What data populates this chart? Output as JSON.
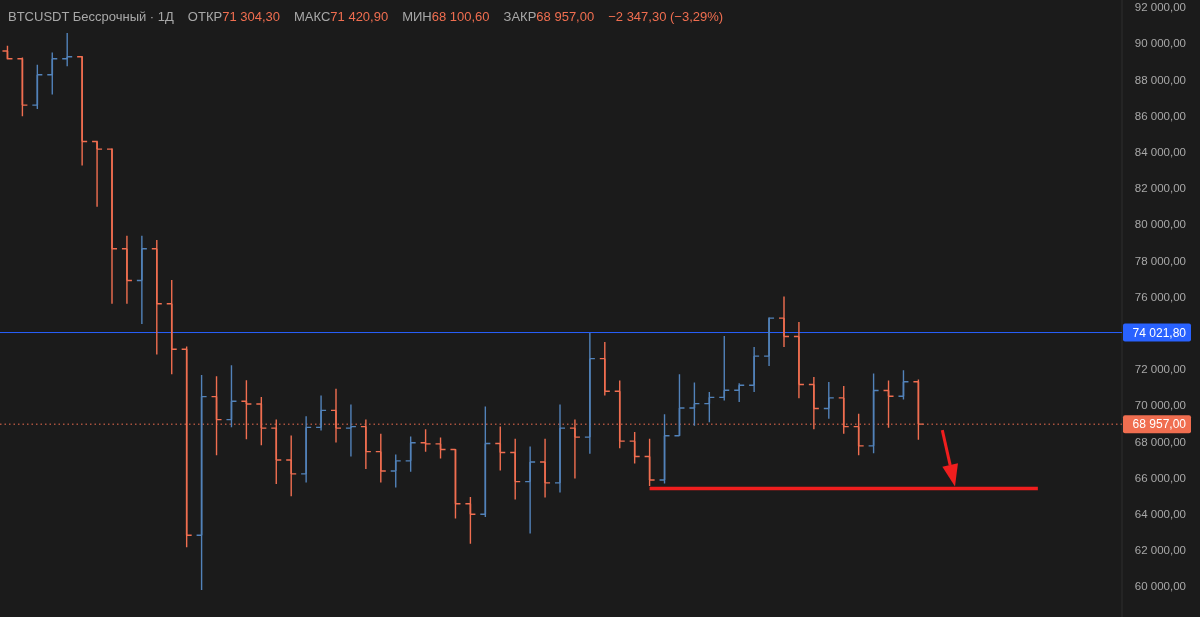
{
  "chart_data": {
    "type": "candlestick",
    "title": "BTCUSDT Бессрочный · 1Д",
    "annotations": [
      "ОТКР71 304,30",
      "МАКС71 420,90",
      "МИН68 100,60",
      "ЗАКР68 957,00",
      "−2 347,30 (−3,29%)"
    ],
    "categories": [
      null,
      null,
      null,
      null,
      null,
      null,
      null,
      null,
      null,
      null,
      null,
      null,
      null,
      null,
      null,
      null,
      null,
      null,
      null,
      null,
      null,
      null,
      null,
      null,
      null,
      null,
      null,
      null,
      null,
      null,
      null,
      null,
      null,
      null,
      null,
      null,
      null,
      null,
      null,
      null,
      null,
      null,
      null,
      null,
      null,
      null,
      null,
      null,
      null,
      null,
      null,
      null,
      null,
      null,
      null,
      null,
      null,
      null,
      null,
      null,
      null,
      null,
      null,
      null,
      null,
      null,
      null,
      null,
      null,
      null,
      null,
      null,
      null,
      null,
      null
    ],
    "series": [
      {
        "ohlc": [
          [
            89580,
            89870,
            89110,
            89150
          ],
          [
            89150,
            89220,
            85980,
            86590
          ],
          [
            86590,
            88820,
            86370,
            88270
          ],
          [
            88270,
            89500,
            87180,
            89150
          ],
          [
            89150,
            90570,
            88740,
            89260
          ],
          [
            89260,
            89300,
            83250,
            84580
          ],
          [
            84580,
            84620,
            80970,
            84160
          ],
          [
            84160,
            84200,
            75610,
            78650
          ],
          [
            78650,
            79370,
            75610,
            76900
          ],
          [
            76900,
            79370,
            74500,
            78650
          ],
          [
            78650,
            79130,
            72810,
            75610
          ],
          [
            75610,
            76920,
            71720,
            73100
          ],
          [
            73100,
            73250,
            62160,
            62820
          ],
          [
            62820,
            71670,
            59790,
            70480
          ],
          [
            70480,
            71610,
            67240,
            69210
          ],
          [
            69210,
            72220,
            68790,
            70220
          ],
          [
            70220,
            71390,
            68130,
            70070
          ],
          [
            70070,
            70460,
            67790,
            68740
          ],
          [
            68740,
            69210,
            65650,
            66980
          ],
          [
            66980,
            68330,
            64980,
            66210
          ],
          [
            66210,
            69390,
            65740,
            68780
          ],
          [
            68780,
            70540,
            68610,
            69720
          ],
          [
            69720,
            70910,
            67940,
            68740
          ],
          [
            68740,
            70040,
            67170,
            68820
          ],
          [
            68820,
            69210,
            66480,
            67440
          ],
          [
            67440,
            68430,
            65740,
            66370
          ],
          [
            66370,
            67280,
            65460,
            66930
          ],
          [
            66930,
            68280,
            66330,
            67930
          ],
          [
            67930,
            68670,
            67430,
            67870
          ],
          [
            67870,
            68220,
            67060,
            67560
          ],
          [
            67560,
            67590,
            63740,
            64560
          ],
          [
            64560,
            64930,
            62350,
            63980
          ],
          [
            63980,
            69940,
            63820,
            67890
          ],
          [
            67890,
            68830,
            66390,
            67390
          ],
          [
            67390,
            68150,
            64790,
            65780
          ],
          [
            65780,
            67720,
            62910,
            66870
          ],
          [
            66870,
            68150,
            64910,
            65710
          ],
          [
            65710,
            70040,
            65180,
            68740
          ],
          [
            68740,
            69210,
            65960,
            68240
          ],
          [
            68240,
            73990,
            67320,
            72580
          ],
          [
            72580,
            73500,
            70540,
            70780
          ],
          [
            70780,
            71370,
            67630,
            68020
          ],
          [
            68020,
            68520,
            66790,
            67170
          ],
          [
            67170,
            68150,
            65540,
            65870
          ],
          [
            65870,
            69500,
            65680,
            68320
          ],
          [
            68320,
            71720,
            68300,
            69850
          ],
          [
            69850,
            71260,
            68870,
            70090
          ],
          [
            70090,
            70740,
            69070,
            70440
          ],
          [
            70440,
            73830,
            70260,
            70830
          ],
          [
            70830,
            71220,
            70180,
            71110
          ],
          [
            71110,
            73220,
            70740,
            72720
          ],
          [
            72720,
            74870,
            72170,
            74820
          ],
          [
            74820,
            76020,
            73220,
            73800
          ],
          [
            73800,
            74610,
            70390,
            71150
          ],
          [
            71150,
            71570,
            68680,
            69820
          ],
          [
            69820,
            71290,
            69260,
            70410
          ],
          [
            70410,
            71060,
            68430,
            68820
          ],
          [
            68820,
            69540,
            67240,
            67760
          ],
          [
            67760,
            71760,
            67350,
            70820
          ],
          [
            70820,
            71370,
            68760,
            70500
          ],
          [
            70500,
            71940,
            70320,
            71300
          ],
          [
            71304.3,
            71420.9,
            68100.6,
            68957
          ],
          null,
          null,
          null,
          null,
          null,
          null,
          null,
          null,
          null,
          null,
          null,
          null,
          null
        ],
        "colors": [
          "#f06e50",
          "#f06e50",
          "#5282b9",
          "#5282b9",
          "#5282b9",
          "#f06e50",
          "#f06e50",
          "#f06e50",
          "#f06e50",
          "#5282b9",
          "#f06e50",
          "#f06e50",
          "#f06e50",
          "#5282b9",
          "#f06e50",
          "#5282b9",
          "#f06e50",
          "#f06e50",
          "#f06e50",
          "#f06e50",
          "#5282b9",
          "#5282b9",
          "#f06e50",
          "#5282b9",
          "#f06e50",
          "#f06e50",
          "#5282b9",
          "#5282b9",
          "#f06e50",
          "#f06e50",
          "#f06e50",
          "#f06e50",
          "#5282b9",
          "#f06e50",
          "#f06e50",
          "#5282b9",
          "#f06e50",
          "#5282b9",
          "#f06e50",
          "#5282b9",
          "#f06e50",
          "#f06e50",
          "#f06e50",
          "#f06e50",
          "#5282b9",
          "#5282b9",
          "#5282b9",
          "#5282b9",
          "#5282b9",
          "#5282b9",
          "#5282b9",
          "#5282b9",
          "#f06e50",
          "#f06e50",
          "#f06e50",
          "#5282b9",
          "#f06e50",
          "#f06e50",
          "#5282b9",
          "#f06e50",
          "#5282b9",
          "#f06e50",
          null,
          null,
          null,
          null,
          null,
          null,
          null,
          null,
          null,
          null,
          null,
          null,
          null
        ]
      },
      {
        "type": "line",
        "color": "#f01e1e",
        "values": [
          null,
          null,
          null,
          null,
          null,
          null,
          null,
          null,
          null,
          null,
          null,
          null,
          null,
          null,
          null,
          null,
          null,
          null,
          null,
          null,
          null,
          null,
          null,
          null,
          null,
          null,
          null,
          null,
          null,
          null,
          null,
          null,
          null,
          null,
          null,
          null,
          null,
          null,
          null,
          null,
          null,
          null,
          null,
          65400,
          65400,
          65400,
          65400,
          65400,
          65400,
          65400,
          65400,
          65400,
          65400,
          65400,
          65400,
          65400,
          65400,
          65400,
          65400,
          65400,
          65400,
          65400,
          65400,
          65400,
          65400,
          65400,
          65400,
          65400,
          65400,
          65400,
          null,
          null,
          null,
          null,
          null
        ]
      }
    ],
    "ylim": [
      58300,
      92400
    ],
    "yticks": [
      {
        "value": 60000,
        "label": "60 000,00"
      },
      {
        "value": 62000,
        "label": "62 000,00"
      },
      {
        "value": 64000,
        "label": "64 000,00"
      },
      {
        "value": 66000,
        "label": "66 000,00"
      },
      {
        "value": 68000,
        "label": "68 000,00"
      },
      {
        "value": 70000,
        "label": "70 000,00"
      },
      {
        "value": 72000,
        "label": "72 000,00"
      },
      {
        "value": 76000,
        "label": "76 000,00"
      },
      {
        "value": 78000,
        "label": "78 000,00"
      },
      {
        "value": 80000,
        "label": "80 000,00"
      },
      {
        "value": 82000,
        "label": "82 000,00"
      },
      {
        "value": 84000,
        "label": "84 000,00"
      },
      {
        "value": 86000,
        "label": "86 000,00"
      },
      {
        "value": 88000,
        "label": "88 000,00"
      },
      {
        "value": 90000,
        "label": "90 000,00"
      },
      {
        "value": 92000,
        "label": "92 000,00"
      }
    ],
    "tick_labels": "y",
    "ref_lines": [
      {
        "axis": "y",
        "value": 74021.8,
        "label": "74 021,80",
        "color": "#2962ff"
      },
      {
        "axis": "y",
        "value": 68957,
        "label": "68 957,00",
        "color": "#f06e50",
        "line_style": "dotted"
      }
    ]
  }
}
